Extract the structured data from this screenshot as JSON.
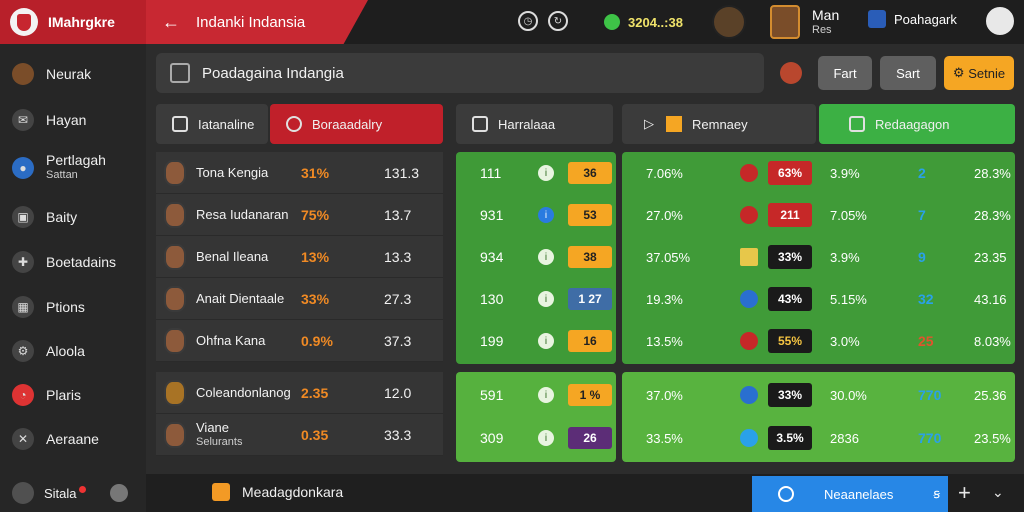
{
  "app": {
    "brand_title": "IMahrgkre",
    "breadcrumb": "Indanki Indansia",
    "clock": "3204..:38",
    "user_name": "Man",
    "user_sub": "Res",
    "org_name": "Poahagark"
  },
  "sidebar": {
    "items": [
      {
        "label": "Neurak",
        "sub": "",
        "icon": "avatar-icon"
      },
      {
        "label": "Hayan",
        "sub": "",
        "icon": "chat-icon"
      },
      {
        "label": "Pertlagah",
        "sub": "Sattan",
        "icon": "location-icon"
      },
      {
        "label": "Baity",
        "sub": "",
        "icon": "bag-icon"
      },
      {
        "label": "Boetadains",
        "sub": "",
        "icon": "puzzle-icon"
      },
      {
        "label": "Ptions",
        "sub": "",
        "icon": "grid-icon"
      },
      {
        "label": "Aloola",
        "sub": "",
        "icon": "network-icon"
      },
      {
        "label": "Plaris",
        "sub": "",
        "icon": "clock-icon"
      },
      {
        "label": "Aeraane",
        "sub": "",
        "icon": "tools-icon"
      }
    ]
  },
  "bottom": {
    "left_label": "Sitala",
    "message": "Meadagdonkara",
    "action_label": "Neaanelaes",
    "action_arrow": "ꞩ"
  },
  "search": {
    "text": "Poadagaina Indangia"
  },
  "buttons": {
    "b1": "Fart",
    "b2": "Sart",
    "b3": "Setnie"
  },
  "headers": {
    "h1": "Iatanaline",
    "h2": "Boraaadalry",
    "h3": "Harralaaa",
    "h4": "Remnaey",
    "h5": "Redaagagon"
  },
  "players": [
    {
      "name": "Tona Kengia",
      "sub": "",
      "pct": "31%",
      "val": "131.3"
    },
    {
      "name": "Resa Iudanaran",
      "sub": "",
      "pct": "75%",
      "val": "13.7"
    },
    {
      "name": "Benal Ileana",
      "sub": "",
      "pct": "13%",
      "val": "13.3"
    },
    {
      "name": "Anait Dientaale",
      "sub": "",
      "pct": "33%",
      "val": "27.3"
    },
    {
      "name": "Ohfna Kana",
      "sub": "",
      "pct": "0.9%",
      "val": "37.3"
    },
    {
      "name": "Coleandonlanog",
      "sub": "",
      "pct": "2.35",
      "val": "12.0"
    },
    {
      "name": "Viane",
      "sub": "Selurants",
      "pct": "0.35",
      "val": "33.3"
    }
  ],
  "green_stats": [
    {
      "n": "111",
      "chip": "36",
      "chip_color": "#f5a623"
    },
    {
      "n": "931",
      "chip": "53",
      "chip_color": "#f5a623"
    },
    {
      "n": "934",
      "chip": "38",
      "chip_color": "#f5a623"
    },
    {
      "n": "130",
      "chip": "1 27",
      "chip_color": "#3f6da6"
    },
    {
      "n": "199",
      "chip": "16",
      "chip_color": "#f5a623"
    },
    {
      "n": "591",
      "chip": "1 %",
      "chip_color": "#f5a623"
    },
    {
      "n": "309",
      "chip": "26",
      "chip_color": "#5c2d77"
    }
  ],
  "right_table": [
    {
      "c1": "7.06%",
      "badge": "63%",
      "badge_color": "#c62828",
      "c2": "3.9%",
      "c3": "2",
      "c3_color": "#2aa1e8",
      "c4": "28.3%"
    },
    {
      "c1": "27.0%",
      "badge": "211",
      "badge_color": "#c62828",
      "c2": "7.05%",
      "c3": "7",
      "c3_color": "#2aa1e8",
      "c4": "28.3%"
    },
    {
      "c1": "37.05%",
      "badge": "33%",
      "badge_color": "#1a1a1a",
      "c2": "3.9%",
      "c3": "9",
      "c3_color": "#2aa1e8",
      "c4": "23.35"
    },
    {
      "c1": "19.3%",
      "badge": "43%",
      "badge_color": "#1a1a1a",
      "c2": "5.15%",
      "c3": "32",
      "c3_color": "#2aa1e8",
      "c4": "43.16"
    },
    {
      "c1": "13.5%",
      "badge": "55%",
      "badge_color": "#1a1a1a",
      "c2": "3.0%",
      "c3": "25",
      "c3_color": "#e0542c",
      "c4": "8.03%"
    },
    {
      "c1": "37.0%",
      "badge": "33%",
      "badge_color": "#1a1a1a",
      "c2": "30.0%",
      "c3": "770",
      "c3_color": "#2aa1e8",
      "c4": "25.36"
    },
    {
      "c1": "33.5%",
      "badge": "3.5%",
      "badge_color": "#1a1a1a",
      "c2": "2836",
      "c3": "770",
      "c3_color": "#2aa1e8",
      "c4": "23.5%"
    }
  ]
}
